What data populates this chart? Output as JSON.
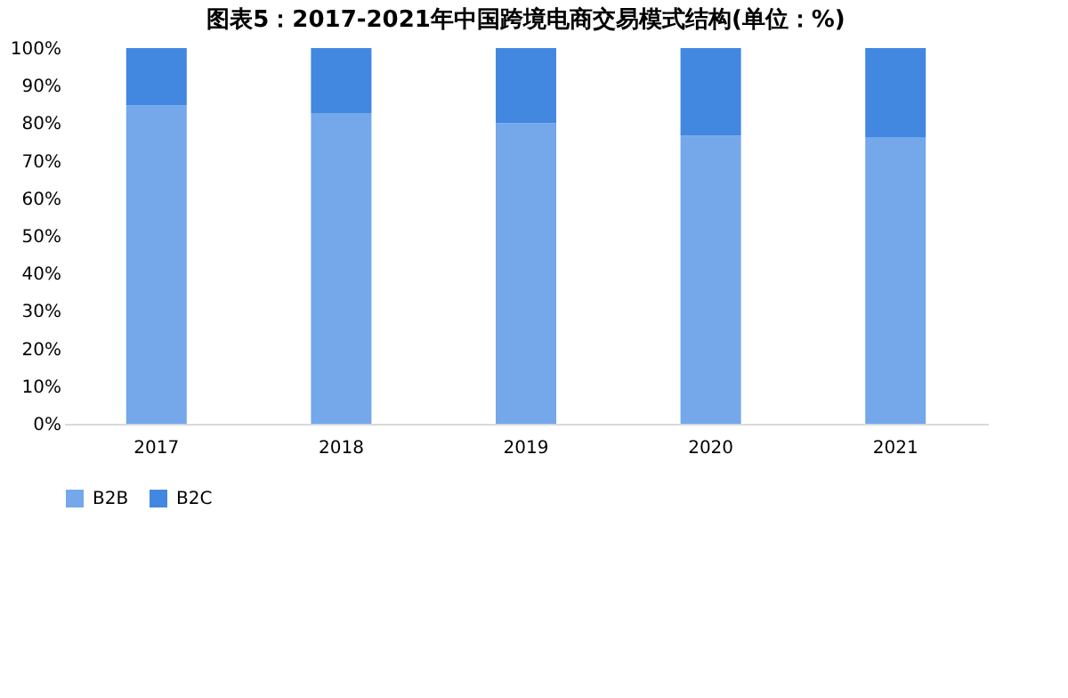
{
  "chart_data": {
    "type": "bar",
    "stacked": true,
    "title": "图表5：2017-2021年中国跨境电商交易模式结构(单位：%)",
    "categories": [
      "2017",
      "2018",
      "2019",
      "2020",
      "2021"
    ],
    "series": [
      {
        "name": "B2B",
        "color": "#75a7eb",
        "values": [
          84.7,
          82.7,
          80,
          76.7,
          76.3
        ]
      },
      {
        "name": "B2C",
        "color": "#4287e0",
        "values": [
          15.3,
          17.3,
          20,
          23.3,
          23.7
        ]
      }
    ],
    "ylim": [
      0,
      100
    ],
    "yticks": [
      {
        "value": 0,
        "label": "0%"
      },
      {
        "value": 10,
        "label": "10%"
      },
      {
        "value": 20,
        "label": "20%"
      },
      {
        "value": 30,
        "label": "30%"
      },
      {
        "value": 40,
        "label": "40%"
      },
      {
        "value": 50,
        "label": "50%"
      },
      {
        "value": 60,
        "label": "60%"
      },
      {
        "value": 70,
        "label": "70%"
      },
      {
        "value": 80,
        "label": "80%"
      },
      {
        "value": 90,
        "label": "90%"
      },
      {
        "value": 100,
        "label": "100%"
      }
    ],
    "grid": false,
    "legend": "bottom"
  }
}
